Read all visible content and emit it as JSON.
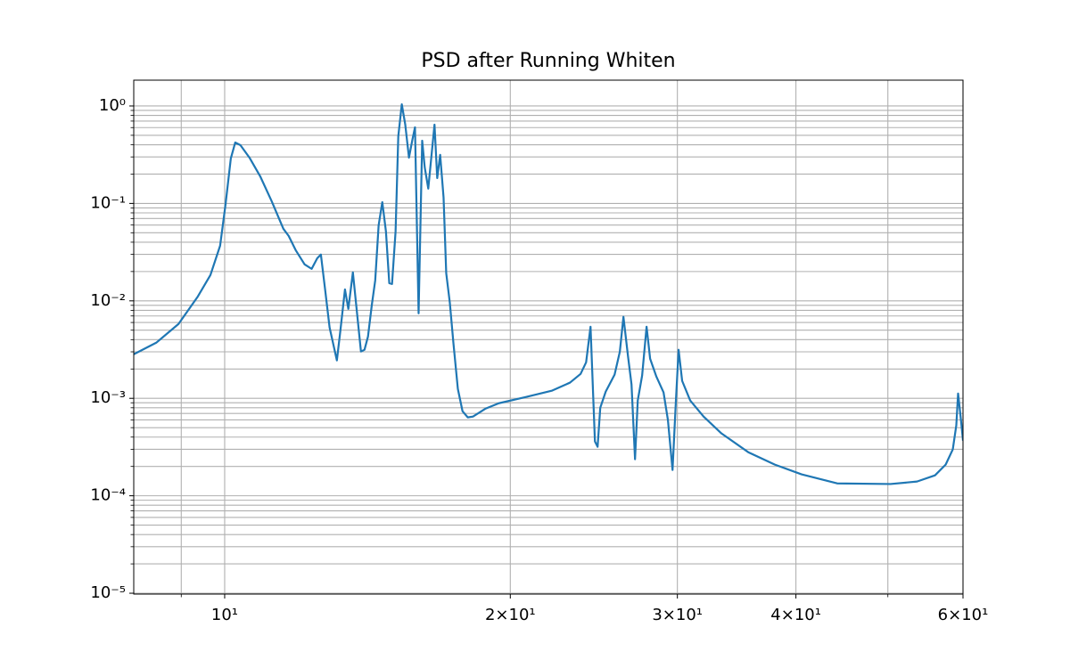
{
  "chart_data": {
    "type": "line",
    "title": "PSD after Running Whiten",
    "xscale": "log",
    "yscale": "log",
    "grid": true,
    "color": "#1f77b4",
    "xlim": [
      8.02,
      60
    ],
    "ylim": [
      9.8e-06,
      1.84
    ],
    "xticks": [
      {
        "value": 10,
        "label": "10¹"
      },
      {
        "value": 20,
        "label": "2×10¹"
      },
      {
        "value": 30,
        "label": "3×10¹"
      },
      {
        "value": 40,
        "label": "4×10¹"
      },
      {
        "value": 60,
        "label": "6×10¹"
      }
    ],
    "xminorticks": [
      9,
      50
    ],
    "yticks": [
      {
        "value": 1e-05,
        "label": "10⁻⁵"
      },
      {
        "value": 0.0001,
        "label": "10⁻⁴"
      },
      {
        "value": 0.001,
        "label": "10⁻³"
      },
      {
        "value": 0.01,
        "label": "10⁻²"
      },
      {
        "value": 0.1,
        "label": "10⁻¹"
      },
      {
        "value": 1,
        "label": "10⁰"
      }
    ],
    "yminorticks": [
      2e-05,
      3e-05,
      4e-05,
      5e-05,
      6e-05,
      7e-05,
      8e-05,
      9e-05,
      0.0002,
      0.0003,
      0.0004,
      0.0005,
      0.0006,
      0.0007,
      0.0008,
      0.0009,
      0.002,
      0.003,
      0.004,
      0.005,
      0.006,
      0.007,
      0.008,
      0.009,
      0.02,
      0.03,
      0.04,
      0.05,
      0.06,
      0.07,
      0.08,
      0.09,
      0.2,
      0.3,
      0.4,
      0.5,
      0.6,
      0.7,
      0.8,
      0.9
    ],
    "x": [
      8.02,
      8.47,
      8.94,
      9.37,
      9.66,
      9.89,
      10.02,
      10.15,
      10.26,
      10.39,
      10.62,
      10.9,
      11.21,
      11.53,
      11.68,
      11.88,
      12.14,
      12.35,
      12.52,
      12.63,
      12.76,
      12.9,
      13.13,
      13.24,
      13.39,
      13.5,
      13.65,
      13.92,
      14.04,
      14.16,
      14.29,
      14.41,
      14.53,
      14.66,
      14.79,
      14.91,
      15.01,
      15.14,
      15.24,
      15.37,
      15.5,
      15.64,
      15.77,
      15.87,
      16.01,
      16.15,
      16.25,
      16.39,
      16.5,
      16.64,
      16.75,
      16.87,
      17.01,
      17.12,
      17.27,
      17.42,
      17.61,
      17.81,
      18.04,
      18.27,
      18.84,
      19.45,
      20.76,
      22.14,
      23.12,
      23.72,
      24.04,
      24.3,
      24.56,
      24.72,
      24.88,
      25.21,
      25.76,
      26.09,
      26.32,
      26.61,
      26.84,
      27.07,
      27.25,
      27.54,
      27.84,
      28.08,
      28.51,
      29.01,
      29.32,
      29.65,
      29.9,
      30.09,
      30.35,
      30.95,
      31.97,
      33.39,
      35.63,
      38.0,
      40.55,
      44.21,
      50.31,
      53.67,
      56.06,
      57.53,
      58.53,
      59.03,
      59.29,
      59.68,
      60
    ],
    "series": [
      {
        "name": "PSD",
        "color": "#1f77b4",
        "values": [
          0.00283,
          0.00372,
          0.00579,
          0.0111,
          0.0184,
          0.0368,
          0.0969,
          0.289,
          0.422,
          0.396,
          0.295,
          0.19,
          0.105,
          0.055,
          0.0464,
          0.0332,
          0.0237,
          0.0213,
          0.0274,
          0.0299,
          0.0131,
          0.00532,
          0.00245,
          0.00489,
          0.0131,
          0.00828,
          0.0196,
          0.00302,
          0.00315,
          0.00431,
          0.009,
          0.0162,
          0.0597,
          0.103,
          0.0516,
          0.0152,
          0.0149,
          0.0516,
          0.489,
          1.04,
          0.643,
          0.295,
          0.45,
          0.604,
          0.00745,
          0.44,
          0.234,
          0.142,
          0.277,
          0.643,
          0.182,
          0.315,
          0.115,
          0.0192,
          0.0096,
          0.00372,
          0.00125,
          0.000738,
          0.000637,
          0.00065,
          0.000785,
          0.00089,
          0.00103,
          0.0012,
          0.00145,
          0.00178,
          0.00234,
          0.00543,
          0.000361,
          0.000318,
          0.0008,
          0.00117,
          0.00175,
          0.00301,
          0.00685,
          0.00272,
          0.00139,
          0.000237,
          0.00095,
          0.00171,
          0.00543,
          0.00255,
          0.00167,
          0.00115,
          0.000597,
          0.000184,
          0.00099,
          0.00315,
          0.00151,
          0.00095,
          0.00065,
          0.000436,
          0.00028,
          0.000209,
          0.000166,
          0.000134,
          0.000132,
          0.00014,
          0.000162,
          0.000209,
          0.000299,
          0.000527,
          0.00112,
          0.000623,
          0.000368
        ]
      }
    ]
  }
}
